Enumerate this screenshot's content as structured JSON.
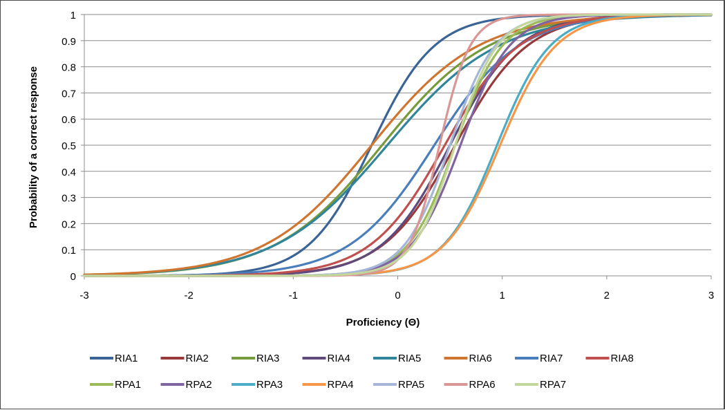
{
  "chart_data": {
    "type": "line",
    "title": "",
    "xlabel": "Proficiency (Θ)",
    "ylabel": "Probability of a correct response",
    "xlim": [
      -3,
      3
    ],
    "ylim": [
      0,
      1
    ],
    "x_ticks": [
      "-3",
      "-2",
      "-1",
      "0",
      "1",
      "2",
      "3"
    ],
    "y_ticks": [
      "0",
      "0.1",
      "0.2",
      "0.3",
      "0.4",
      "0.5",
      "0.6",
      "0.7",
      "0.8",
      "0.9",
      "1"
    ],
    "grid": "horizontal",
    "legend_position": "bottom",
    "series": [
      {
        "name": "RIA1",
        "color": "#3b6496",
        "a": 1.95,
        "b": -0.25,
        "c": 0.0
      },
      {
        "name": "RIA2",
        "color": "#983a3a",
        "a": 1.7,
        "b": 0.55,
        "c": 0.0
      },
      {
        "name": "RIA3",
        "color": "#779a3c",
        "a": 1.15,
        "b": -0.15,
        "c": 0.0
      },
      {
        "name": "RIA4",
        "color": "#604a7b",
        "a": 1.8,
        "b": 0.5,
        "c": 0.0
      },
      {
        "name": "RIA5",
        "color": "#31859b",
        "a": 1.1,
        "b": -0.1,
        "c": 0.0
      },
      {
        "name": "RIA6",
        "color": "#d0752f",
        "a": 1.15,
        "b": -0.25,
        "c": 0.0
      },
      {
        "name": "RIA7",
        "color": "#4a7ebb",
        "a": 1.45,
        "b": 0.35,
        "c": 0.0
      },
      {
        "name": "RIA8",
        "color": "#c0504d",
        "a": 1.65,
        "b": 0.45,
        "c": 0.0
      },
      {
        "name": "RPA1",
        "color": "#9bbb59",
        "a": 2.6,
        "b": 0.55,
        "c": 0.0
      },
      {
        "name": "RPA2",
        "color": "#8064a2",
        "a": 2.5,
        "b": 0.6,
        "c": 0.0
      },
      {
        "name": "RPA3",
        "color": "#4bacc6",
        "a": 2.3,
        "b": 0.95,
        "c": 0.0
      },
      {
        "name": "RPA4",
        "color": "#f79646",
        "a": 2.2,
        "b": 0.98,
        "c": 0.0
      },
      {
        "name": "RPA5",
        "color": "#a5b6d8",
        "a": 2.7,
        "b": 0.5,
        "c": 0.0
      },
      {
        "name": "RPA6",
        "color": "#d99694",
        "a": 4.0,
        "b": 0.4,
        "c": 0.0
      },
      {
        "name": "RPA7",
        "color": "#c3d69b",
        "a": 2.9,
        "b": 0.55,
        "c": 0.0
      }
    ]
  }
}
